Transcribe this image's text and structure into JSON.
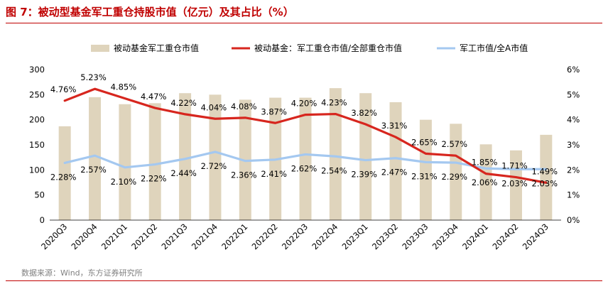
{
  "header": {
    "title": "图 7：被动型基金军工重仓持股市值（亿元）及其占比（%）"
  },
  "footer": {
    "source": "数据来源：Wind，东方证券研究所"
  },
  "chart_data": {
    "type": "bar",
    "categories": [
      "2020Q3",
      "2020Q4",
      "2021Q1",
      "2021Q2",
      "2021Q3",
      "2021Q4",
      "2022Q1",
      "2022Q2",
      "2022Q3",
      "2022Q4",
      "2023Q1",
      "2023Q2",
      "2023Q3",
      "2023Q4",
      "2024Q1",
      "2024Q2",
      "2024Q3"
    ],
    "y_left": {
      "ticks": [
        "0",
        "50",
        "100",
        "150",
        "200",
        "250",
        "300"
      ],
      "ylim": [
        0,
        300
      ]
    },
    "y_right": {
      "ticks": [
        "0%",
        "1%",
        "2%",
        "3%",
        "4%",
        "5%",
        "6%"
      ],
      "ylim": [
        0,
        6
      ]
    },
    "series": [
      {
        "name": "被动基金军工重仓市值",
        "type": "bar",
        "axis": "left",
        "color": "#dfd4bc",
        "values": [
          187,
          245,
          231,
          233,
          253,
          250,
          240,
          244,
          244,
          263,
          253,
          235,
          200,
          192,
          151,
          139,
          170
        ]
      },
      {
        "name": "被动基金：军工重仓市值/全部重仓市值",
        "type": "line",
        "axis": "right",
        "color": "#d7261e",
        "values": [
          4.76,
          5.23,
          4.85,
          4.47,
          4.22,
          4.04,
          4.08,
          3.87,
          4.2,
          4.23,
          3.82,
          3.31,
          2.65,
          2.57,
          1.85,
          1.71,
          1.49
        ],
        "labels": [
          "4.76%",
          "5.23%",
          "4.85%",
          "4.47%",
          "4.22%",
          "4.04%",
          "4.08%",
          "3.87%",
          "4.20%",
          "4.23%",
          "3.82%",
          "3.31%",
          "2.65%",
          "2.57%",
          "1.85%",
          "1.71%",
          "1.49%"
        ]
      },
      {
        "name": "军工市值/全A市值",
        "type": "line",
        "axis": "right",
        "color": "#a4c8f0",
        "values": [
          2.28,
          2.57,
          2.1,
          2.22,
          2.44,
          2.72,
          2.36,
          2.41,
          2.62,
          2.54,
          2.39,
          2.47,
          2.31,
          2.29,
          2.06,
          2.03,
          2.03
        ],
        "labels": [
          "2.28%",
          "2.57%",
          "2.10%",
          "2.22%",
          "2.44%",
          "2.72%",
          "2.36%",
          "2.41%",
          "2.62%",
          "2.54%",
          "2.39%",
          "2.47%",
          "2.31%",
          "2.29%",
          "2.06%",
          "2.03%",
          "2.03%"
        ]
      }
    ]
  }
}
